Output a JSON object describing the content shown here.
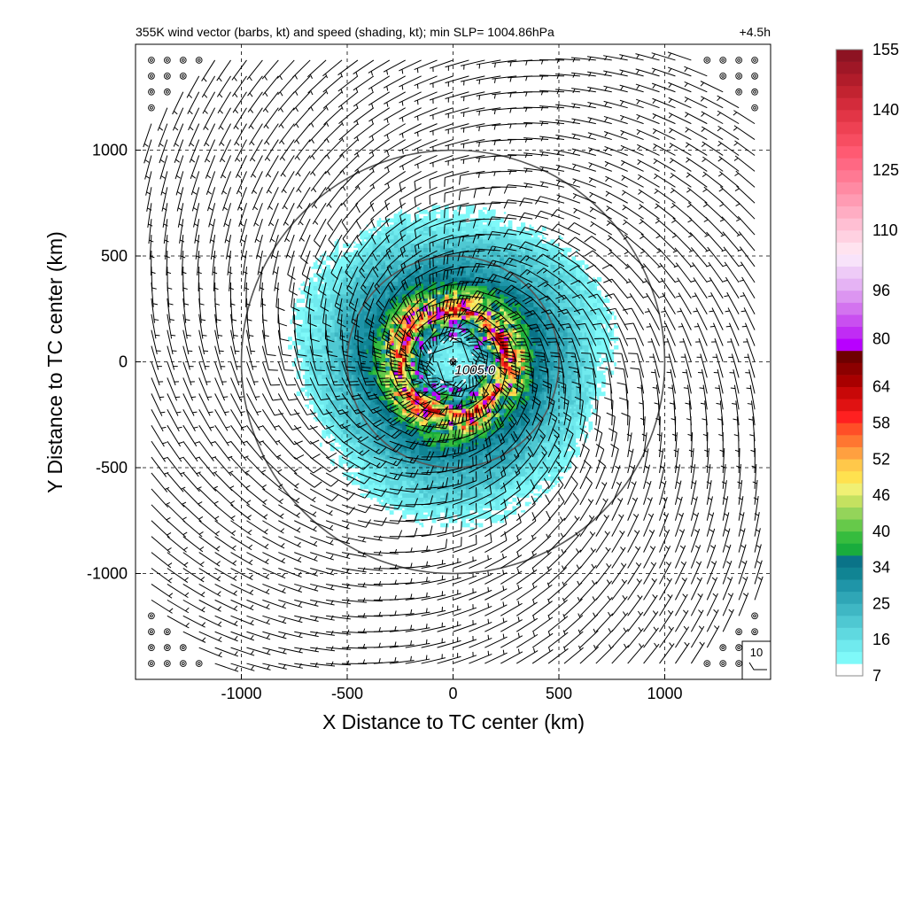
{
  "chart_data": {
    "type": "heatmap",
    "title": "355K wind vector (barbs, kt) and speed (shading, kt); min SLP= 1004.86hPa",
    "time_label": "+4.5h",
    "xlabel": "X Distance to TC center (km)",
    "ylabel": "Y Distance to TC center (km)",
    "xlim": [
      -1500,
      1500
    ],
    "ylim": [
      -1500,
      1500
    ],
    "x_ticks": [
      -1000,
      -500,
      0,
      500,
      1000
    ],
    "y_ticks": [
      -1000,
      -500,
      0,
      500,
      1000
    ],
    "x_tick_labels": [
      "-1000",
      "-500",
      "0",
      "500",
      "1000"
    ],
    "y_tick_labels": [
      "-1000",
      "-500",
      "0",
      "500",
      "1000"
    ],
    "grid": "dashed",
    "range_rings_km": [
      500,
      1000
    ],
    "center": {
      "x": 0,
      "y": 0,
      "marker": "×",
      "label": "1005.0"
    },
    "shading_extent_km": 790,
    "inner_core_radius_km": 150,
    "max_wind_radius_km": 250,
    "barb_grid_spacing_km": 75,
    "barb_key": {
      "label": "10",
      "speed_kt": 10
    },
    "colorbar": {
      "levels": [
        7,
        10,
        13,
        16,
        19,
        22,
        25,
        28,
        31,
        34,
        36,
        38,
        40,
        42,
        44,
        46,
        48,
        50,
        52,
        54,
        56,
        58,
        60,
        62,
        64,
        68,
        72,
        76,
        80,
        84,
        88,
        92,
        96,
        99,
        101,
        104,
        107,
        110,
        113,
        116,
        119,
        122,
        125,
        128,
        131,
        134,
        137,
        140,
        143,
        146,
        149,
        152,
        155,
        158
      ],
      "labels": [
        "7",
        "16",
        "25",
        "34",
        "40",
        "46",
        "52",
        "58",
        "64",
        "80",
        "96",
        "110",
        "125",
        "140",
        "155"
      ],
      "colors": [
        "#ffffff",
        "#7ff9f9",
        "#70eaee",
        "#5fd9e0",
        "#4fc8d2",
        "#3fb7c4",
        "#2fa6b6",
        "#1f95a8",
        "#108493",
        "#0a7388",
        "#19ac3d",
        "#36bc3e",
        "#66c94a",
        "#94d45a",
        "#c4e160",
        "#f0f074",
        "#ffe14f",
        "#ffc84a",
        "#ffa040",
        "#ff7631",
        "#ff4f27",
        "#ff2020",
        "#e01212",
        "#c80808",
        "#a80000",
        "#8c0000",
        "#6e0000",
        "#b800ff",
        "#c02cf4",
        "#c94ff0",
        "#d373ef",
        "#dc95f1",
        "#e5b3f4",
        "#eecbf7",
        "#f8e3fa",
        "#ffe3ef",
        "#ffd1e1",
        "#ffbfd3",
        "#ffadc3",
        "#ff9bb3",
        "#ff8aa3",
        "#ff7993",
        "#ff6883",
        "#ff5a72",
        "#f74d61",
        "#ee4153",
        "#e23546",
        "#d32b3b",
        "#c22330",
        "#b11c2a",
        "#9f1726",
        "#8d1322"
      ]
    }
  }
}
